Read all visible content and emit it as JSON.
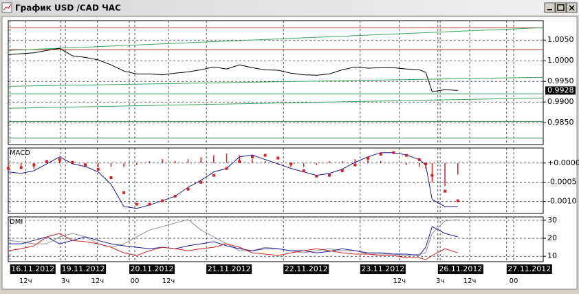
{
  "window": {
    "title": "График USD /CAD  ЧАС"
  },
  "chart_data": [
    {
      "type": "line",
      "xlim": [
        0,
        166.6
      ],
      "ylim": [
        0.9797,
        1.0097
      ],
      "yticks": [
        {
          "value": 1.005,
          "label": "1.0050"
        },
        {
          "value": 1.0,
          "label": "1.0000"
        },
        {
          "value": 0.995,
          "label": "0.9950"
        },
        {
          "value": 0.99,
          "label": "0.9900"
        },
        {
          "value": 0.985,
          "label": "0.9850"
        }
      ],
      "x": [
        0,
        4,
        8,
        12,
        16,
        20,
        24,
        28,
        32,
        36,
        40,
        44,
        48,
        52,
        56,
        60,
        64,
        68,
        72,
        76,
        80,
        84,
        88,
        92,
        96,
        100,
        104,
        108,
        112,
        116,
        120,
        124,
        128,
        130,
        132,
        136,
        140
      ],
      "series": [
        {
          "color": "#000000",
          "values": [
            1.0015,
            1.0017,
            1.0019,
            1.0025,
            1.003,
            1.0012,
            1.0008,
            1.0002,
            0.999,
            0.9975,
            0.9968,
            0.9968,
            0.9966,
            0.997,
            0.9973,
            0.9978,
            0.9985,
            0.998,
            0.999,
            0.9983,
            0.9978,
            0.9977,
            0.997,
            0.9966,
            0.9965,
            0.9968,
            0.9978,
            0.9985,
            0.9982,
            0.9983,
            0.9983,
            0.998,
            0.9978,
            0.9972,
            0.9925,
            0.993,
            0.9928
          ]
        }
      ],
      "price_marker": {
        "value": 0.9928,
        "label": "0.9928"
      },
      "levels": [
        {
          "value": 1.008,
          "color": "#c0392b"
        },
        {
          "value": 1.0027,
          "color": "#c0392b"
        },
        {
          "value": 0.992,
          "color": "#2e8b57"
        },
        {
          "value": 0.9853,
          "color": "#2e8b57"
        },
        {
          "value": 0.9813,
          "color": "#2e8b57"
        }
      ],
      "trendlines": [
        {
          "color": "#3aa35a",
          "x": [
            0,
            166.6
          ],
          "y": [
            1.0025,
            1.008
          ]
        },
        {
          "color": "#3aa35a",
          "x": [
            0,
            166.6
          ],
          "y": [
            0.9938,
            0.996
          ]
        },
        {
          "color": "#3aa35a",
          "x": [
            0,
            166.6
          ],
          "y": [
            0.9885,
            0.991
          ]
        }
      ]
    },
    {
      "type": "macd",
      "title": "MACD",
      "xlim": [
        0,
        166.6
      ],
      "ylim": [
        -0.00131,
        0.00039
      ],
      "yticks": [
        {
          "value": 0,
          "label": "+0.0000"
        },
        {
          "value": -0.0005,
          "label": "-0.0005"
        },
        {
          "value": -0.001,
          "label": "-0.0010"
        }
      ],
      "x": [
        0,
        4,
        8,
        12,
        16,
        20,
        24,
        28,
        32,
        36,
        40,
        44,
        48,
        52,
        56,
        60,
        64,
        68,
        72,
        76,
        80,
        84,
        88,
        92,
        96,
        100,
        104,
        108,
        112,
        116,
        120,
        124,
        128,
        130,
        132,
        136,
        140
      ],
      "histogram": {
        "color": "#d42020",
        "values": [
          -0.0001,
          -0.0001,
          -0.00015,
          5e-05,
          0.0001,
          5e-05,
          -0.0001,
          -0.0001,
          -0.0001,
          -0.0001,
          -5e-05,
          5e-05,
          0.0001,
          5e-05,
          0.0001,
          0.00015,
          0.0002,
          0.00025,
          0.0002,
          0.0001,
          5e-05,
          -5e-05,
          -0.0001,
          -0.0001,
          -5e-05,
          5e-05,
          5e-05,
          0.0001,
          0.0001,
          5e-05,
          0,
          -5e-05,
          -0.0001,
          -0.00015,
          -0.0005,
          -0.0006,
          -0.0003
        ]
      },
      "series": [
        {
          "color": "#1a1aa0",
          "style": "line",
          "values": [
            -0.00023,
            -0.00027,
            -0.0002,
            -2e-05,
            0.00016,
            -2e-05,
            -9e-05,
            -0.00023,
            -0.00055,
            -0.00113,
            -0.00118,
            -0.00109,
            -0.00098,
            -0.00086,
            -0.00063,
            -0.00045,
            -0.00023,
            -0.00014,
            0.00016,
            0.00021,
            9e-05,
            -2e-05,
            -0.00014,
            -0.00023,
            -0.00032,
            -0.00027,
            -0.00016,
            2e-05,
            0.00016,
            0.00027,
            0.00027,
            0.00021,
            9e-05,
            -5e-05,
            -0.00095,
            -0.00113,
            -0.00113
          ]
        },
        {
          "color": "#d42020",
          "style": "dots",
          "values": [
            -0.00014,
            -0.00012,
            -5e-05,
            4e-05,
            9e-05,
            2e-05,
            -5e-05,
            -0.00016,
            -0.00038,
            -0.00077,
            -0.00107,
            -0.00107,
            -0.00098,
            -0.00086,
            -0.00068,
            -0.0005,
            -0.00032,
            -0.00014,
            4e-05,
            0.00016,
            0.0002,
            0.00013,
            -2e-05,
            -0.0002,
            -0.00034,
            -0.00032,
            -0.0002,
            -5e-05,
            0.00013,
            0.00023,
            0.00027,
            0.0002,
            9e-05,
            -2e-05,
            -0.00032,
            -0.00073,
            -0.00098
          ]
        }
      ]
    },
    {
      "type": "dmi",
      "title": "DMI",
      "xlim": [
        0,
        166.6
      ],
      "ylim": [
        7,
        31.9
      ],
      "yticks": [
        10,
        20,
        30
      ],
      "x": [
        0,
        4,
        8,
        12,
        16,
        20,
        24,
        28,
        32,
        36,
        40,
        44,
        48,
        52,
        56,
        60,
        64,
        68,
        72,
        76,
        80,
        84,
        88,
        92,
        96,
        100,
        104,
        108,
        112,
        116,
        120,
        124,
        128,
        130,
        132,
        136,
        140
      ],
      "series": [
        {
          "color": "#909090",
          "style": "line",
          "values": [
            18.8,
            18.1,
            16.9,
            16.9,
            20.8,
            22.7,
            20.8,
            16.9,
            15,
            16.9,
            20.8,
            24.6,
            26.5,
            28.5,
            30.4,
            24.6,
            20.8,
            16.9,
            13.1,
            13.1,
            15,
            14.2,
            13.1,
            11.9,
            13.1,
            14.2,
            13.1,
            13.1,
            11.2,
            11.2,
            11.2,
            10.4,
            11.2,
            11.9,
            22.7,
            29.6,
            30.4
          ]
        },
        {
          "color": "#1a1aa0",
          "style": "line",
          "values": [
            16.9,
            16.9,
            18.8,
            20.8,
            16.9,
            18.8,
            20.8,
            18.8,
            16.9,
            15.8,
            15,
            14.2,
            15,
            14.2,
            15.8,
            16.9,
            18.1,
            15.8,
            14.2,
            13.1,
            14.2,
            14.2,
            13.1,
            13.1,
            11.9,
            12.7,
            14.2,
            13.1,
            11.9,
            11.9,
            11.2,
            11.2,
            10.4,
            15,
            26.5,
            22.7,
            20.8
          ]
        },
        {
          "color": "#d42020",
          "style": "line",
          "values": [
            13.1,
            14.2,
            15.8,
            20.8,
            22.7,
            18.8,
            18.1,
            16.9,
            15,
            11.9,
            10.4,
            13.1,
            15,
            14.2,
            13.1,
            14.2,
            15,
            16.9,
            15,
            11.9,
            11.2,
            10.4,
            11.9,
            13.1,
            14.2,
            13.1,
            11.9,
            11.2,
            11.2,
            10.4,
            10.4,
            9.2,
            9.2,
            8.1,
            10.4,
            14.2,
            11.9
          ]
        }
      ],
      "xticks": [
        {
          "value": 0.6,
          "label": "16.11.2012"
        },
        {
          "value": 16.3,
          "label": "19.11.2012"
        },
        {
          "value": 37.7,
          "label": "20.11.2012"
        },
        {
          "value": 61.7,
          "label": "21.11.2012"
        },
        {
          "value": 85.7,
          "label": "22.11.2012"
        },
        {
          "value": 109.6,
          "label": "23.11.2012"
        },
        {
          "value": 133.8,
          "label": "26.11.2012"
        },
        {
          "value": 155.2,
          "label": "27.11.2012"
        }
      ],
      "hour_ticks": [
        {
          "value": 5.4,
          "label": "12ч"
        },
        {
          "value": 17.8,
          "label": "3ч"
        },
        {
          "value": 27.8,
          "label": "12ч"
        },
        {
          "value": 39.4,
          "label": "00"
        },
        {
          "value": 49.9,
          "label": "12ч"
        },
        {
          "value": 121.8,
          "label": "12ч"
        },
        {
          "value": 134.5,
          "label": "3ч"
        },
        {
          "value": 143.7,
          "label": "12ч"
        },
        {
          "value": 157.4,
          "label": "00"
        }
      ]
    }
  ]
}
